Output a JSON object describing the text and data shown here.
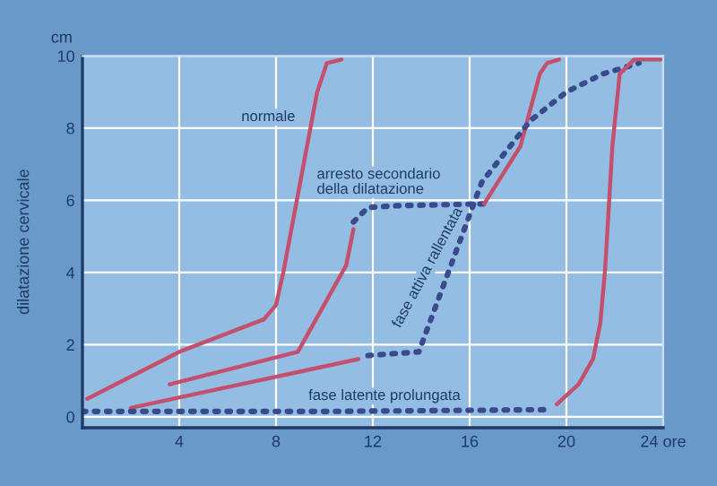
{
  "chart_data": {
    "type": "line",
    "ylabel": "dilatazione cervicale",
    "annotations": [
      "cm",
      "normale",
      "arresto secondario\ndella dilatazione",
      "fase attiva rallentata",
      "fase latente prolungata"
    ],
    "series": [
      {
        "color": "#c4506e",
        "line_style": "solid",
        "x": [
          0.2,
          4,
          7.5,
          8,
          8.3,
          9,
          9.7,
          10.1,
          10.7
        ],
        "values": [
          0.5,
          1.8,
          2.7,
          3.1,
          4,
          6.5,
          9,
          9.8,
          9.9
        ]
      },
      {
        "color": "#c4506e",
        "line_style": "solid",
        "x": [
          3.6,
          8.9,
          10.9,
          11.2
        ],
        "values": [
          0.9,
          1.8,
          4.2,
          5.2
        ]
      },
      {
        "color": "#3a4a8c",
        "line_style": "dotted",
        "x": [
          11.2,
          11.8,
          13,
          16.6
        ],
        "values": [
          5.4,
          5.8,
          5.85,
          5.9
        ]
      },
      {
        "color": "#c4506e",
        "line_style": "solid",
        "x": [
          16.6,
          18.1,
          18.9,
          19.2,
          19.7
        ],
        "values": [
          5.9,
          7.5,
          9.5,
          9.8,
          9.9
        ]
      },
      {
        "color": "#c4506e",
        "line_style": "solid",
        "x": [
          2,
          11.4
        ],
        "values": [
          0.25,
          1.6
        ]
      },
      {
        "color": "#3a4a8c",
        "line_style": "dotted",
        "x": [
          11.8,
          13.9,
          16.5,
          18.5,
          20,
          21.5,
          23
        ],
        "values": [
          1.7,
          1.8,
          6.5,
          8.2,
          9,
          9.5,
          9.8
        ]
      },
      {
        "color": "#3a4a8c",
        "line_style": "dotted",
        "x": [
          0,
          10,
          19.4
        ],
        "values": [
          0.15,
          0.15,
          0.2
        ]
      },
      {
        "color": "#c4506e",
        "line_style": "solid",
        "x": [
          19.6,
          20.5,
          21.1,
          21.4,
          21.6,
          21.9,
          22.2,
          22.8,
          23.9
        ],
        "values": [
          0.35,
          0.9,
          1.6,
          2.6,
          4.1,
          7.5,
          9.5,
          9.9,
          9.9
        ]
      }
    ],
    "xlim": [
      0,
      24
    ],
    "ylim": [
      -0.3,
      10
    ],
    "xticks": [
      4,
      8,
      12,
      16,
      20,
      {
        "value": 24,
        "label": "24 ore"
      }
    ],
    "yticks": [
      0,
      2,
      4,
      6,
      8,
      10
    ],
    "grid": true,
    "legend": false,
    "marker": "none"
  }
}
